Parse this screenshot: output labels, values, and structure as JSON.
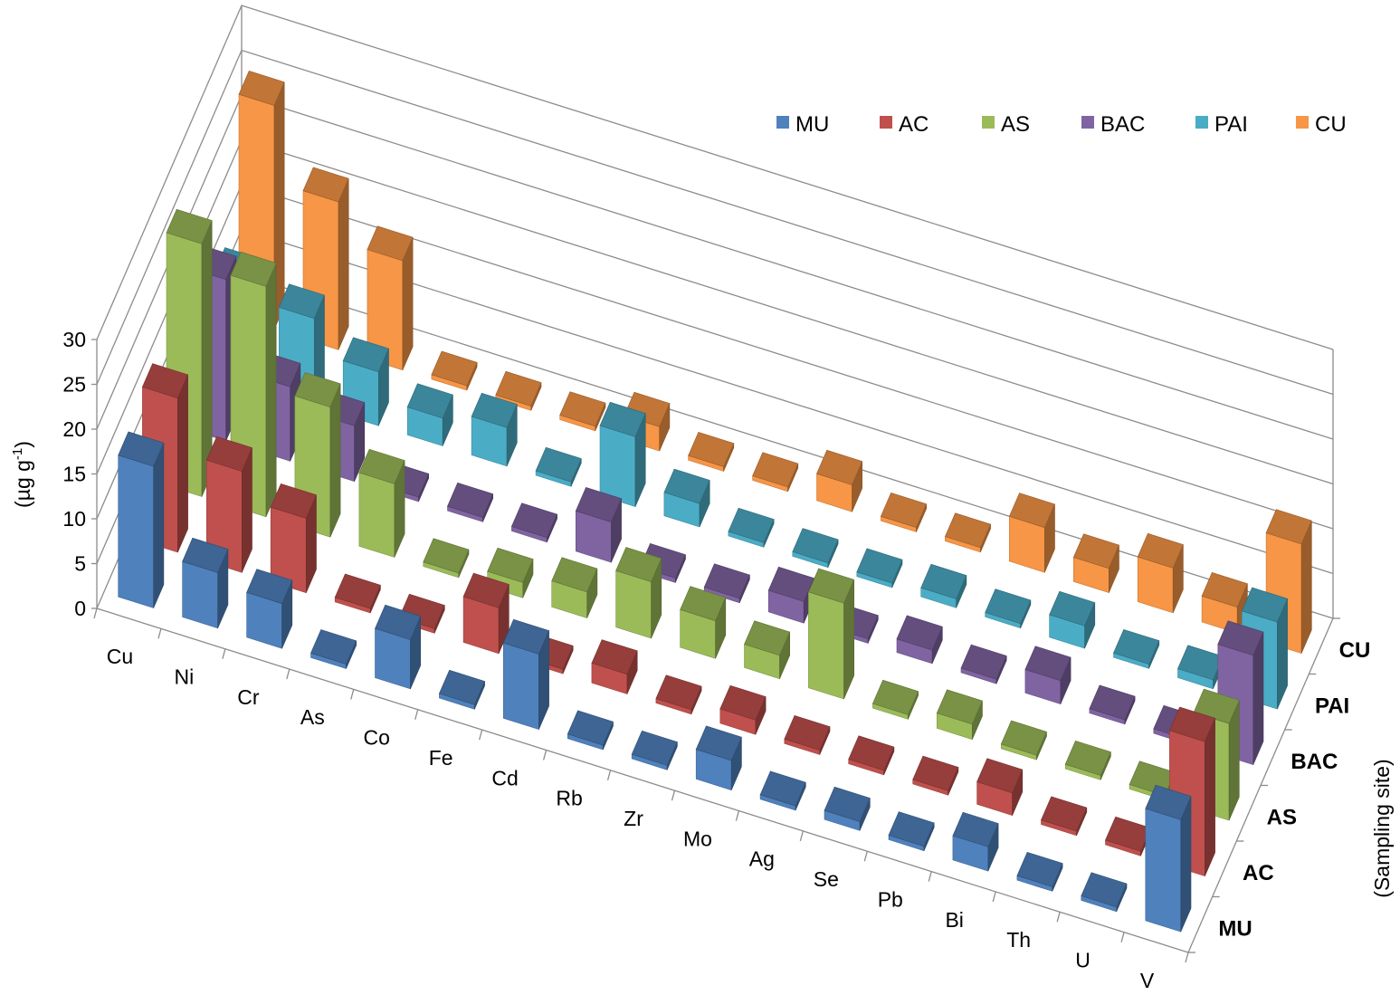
{
  "chart_data": {
    "type": "bar",
    "subtype": "3d-column",
    "ylabel_prefix": "(µg g",
    "ylabel_sup": "-1",
    "ylabel_suffix": ")",
    "zlabel": "(Sampling site)",
    "ylim": [
      0,
      30
    ],
    "yticks": [
      "0",
      "5",
      "10",
      "15",
      "20",
      "25",
      "30"
    ],
    "grid": true,
    "legend_position": "top-right",
    "categories": [
      "Cu",
      "Ni",
      "Cr",
      "As",
      "Co",
      "Fe",
      "Cd",
      "Rb",
      "Zr",
      "Mo",
      "Ag",
      "Se",
      "Pb",
      "Bi",
      "Th",
      "U",
      "V"
    ],
    "series": [
      {
        "name": "MU",
        "color": "#4f81bd",
        "values": [
          15.8,
          6.2,
          5.0,
          0.5,
          5.5,
          0.5,
          8.4,
          0.5,
          0.5,
          3.3,
          0.5,
          1.0,
          0.5,
          2.7,
          0.5,
          0.5,
          12.5
        ]
      },
      {
        "name": "AC",
        "color": "#c0504d",
        "values": [
          17.2,
          11.3,
          8.3,
          0.5,
          0.5,
          5.1,
          0.5,
          2.2,
          0.5,
          1.6,
          0.5,
          0.5,
          0.5,
          2.5,
          0.5,
          0.5,
          15.0
        ]
      },
      {
        "name": "AS",
        "color": "#9bbb59",
        "values": [
          28.2,
          25.7,
          14.5,
          8.2,
          0.5,
          1.7,
          2.9,
          6.3,
          4.2,
          2.6,
          10.7,
          0.5,
          1.7,
          0.5,
          0.5,
          0.5,
          10.8
        ]
      },
      {
        "name": "BAC",
        "color": "#8064a2",
        "values": [
          18.0,
          8.3,
          6.2,
          0.5,
          0.5,
          0.5,
          4.5,
          0.5,
          0.5,
          2.4,
          0.5,
          1.5,
          0.5,
          2.6,
          0.5,
          0.5,
          12.2
        ]
      },
      {
        "name": "PAI",
        "color": "#4bacc6",
        "values": [
          11.5,
          9.7,
          6.0,
          3.1,
          4.3,
          0.5,
          7.8,
          2.6,
          0.5,
          0.5,
          0.5,
          1.0,
          0.5,
          2.5,
          0.5,
          1.0,
          9.7
        ]
      },
      {
        "name": "CU",
        "color": "#f79646",
        "values": [
          25.0,
          16.5,
          12.2,
          0.5,
          0.5,
          0.5,
          2.7,
          0.5,
          0.5,
          3.0,
          0.5,
          0.5,
          5.0,
          2.7,
          5.0,
          2.9,
          12.2
        ]
      }
    ],
    "sites": [
      "MU",
      "AC",
      "AS",
      "BAC",
      "PAI",
      "CU"
    ]
  }
}
